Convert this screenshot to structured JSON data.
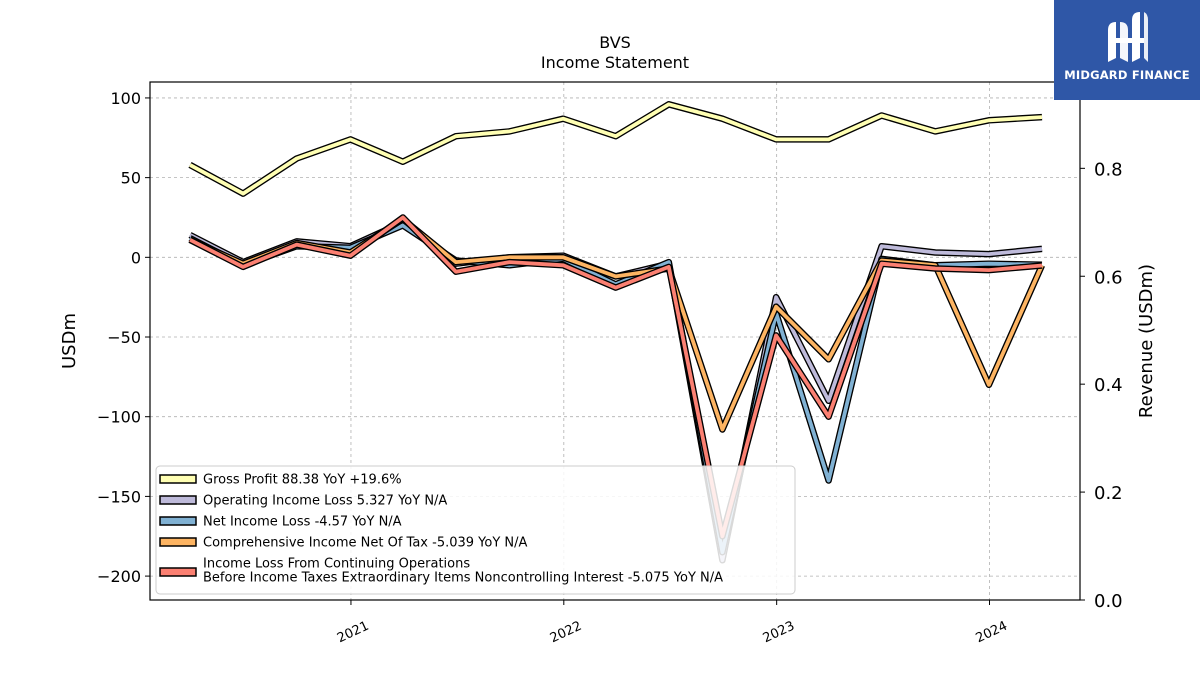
{
  "chart_data": {
    "type": "line",
    "title": "BVS",
    "subtitle": "Income Statement",
    "ylabel": "USDm",
    "y2label": "Revenue (USDm)",
    "ylim": [
      -215,
      110
    ],
    "y2lim": [
      0.0,
      0.96
    ],
    "yticks": [
      100,
      50,
      0,
      -50,
      -100,
      -150,
      -200
    ],
    "y2ticks": [
      0.0,
      0.2,
      0.4,
      0.6,
      0.8
    ],
    "x_tick_labels": [
      "2021",
      "2022",
      "2023",
      "2024"
    ],
    "x_tick_dates": [
      "2021-01-01",
      "2022-01-01",
      "2023-01-01",
      "2024-01-01"
    ],
    "grid": true,
    "legend_position": "lower-left",
    "x": [
      "2020-03-31",
      "2020-06-30",
      "2020-09-30",
      "2020-12-31",
      "2021-03-31",
      "2021-06-30",
      "2021-09-30",
      "2021-12-31",
      "2022-03-31",
      "2022-06-30",
      "2022-09-30",
      "2022-12-31",
      "2023-03-31",
      "2023-06-30",
      "2023-09-30",
      "2023-12-31",
      "2024-03-31"
    ],
    "series": [
      {
        "name": "Gross Profit",
        "legend_label": "Gross Profit  88.38 YoY +19.6%",
        "color": "#ffffb3",
        "values": [
          58,
          40,
          62,
          74,
          60,
          76,
          79,
          87,
          76,
          96,
          87,
          74,
          74,
          89,
          79,
          86,
          88
        ]
      },
      {
        "name": "Operating Income Loss",
        "legend_label": "Operating Income Loss  5.327 YoY N/A",
        "color": "#bebada",
        "values": [
          14,
          -3,
          10,
          7,
          22,
          -4,
          0,
          1,
          -12,
          -4,
          -190,
          -25,
          -90,
          7,
          3,
          2,
          5.3
        ]
      },
      {
        "name": "Net Income Loss",
        "legend_label": "Net Income Loss  -4.57 YoY N/A",
        "color": "#80b1d3",
        "values": [
          12,
          -5,
          7,
          6,
          20,
          -2,
          -5,
          -1,
          -17,
          -3,
          -185,
          -35,
          -140,
          -1,
          -5,
          -4,
          -4.6
        ]
      },
      {
        "name": "Comprehensive Income Net Of Tax",
        "legend_label": "Comprehensive Income Net Of Tax  -5.039 YoY N/A",
        "color": "#fdb462",
        "values": [
          11,
          -4,
          9,
          3,
          24,
          -3,
          0,
          0,
          -12,
          -7,
          -108,
          -31,
          -64,
          -2,
          -5,
          -80,
          -5
        ]
      },
      {
        "name": "Income Loss From Continuing Operations Before Income Taxes Extraordinary Items Noncontrolling Interest",
        "legend_label_lines": [
          "Income Loss From Continuing Operations",
          "Before Income Taxes Extraordinary Items Noncontrolling Interest  -5.075 YoY N/A"
        ],
        "color": "#fb8072",
        "values": [
          11,
          -6,
          8,
          1,
          25,
          -9,
          -3,
          -5,
          -19,
          -6,
          -175,
          -49,
          -100,
          -4,
          -7,
          -8,
          -5.1
        ]
      }
    ]
  },
  "brand": {
    "name": "MIDGARD FINANCE",
    "color": "#2f57a7"
  }
}
